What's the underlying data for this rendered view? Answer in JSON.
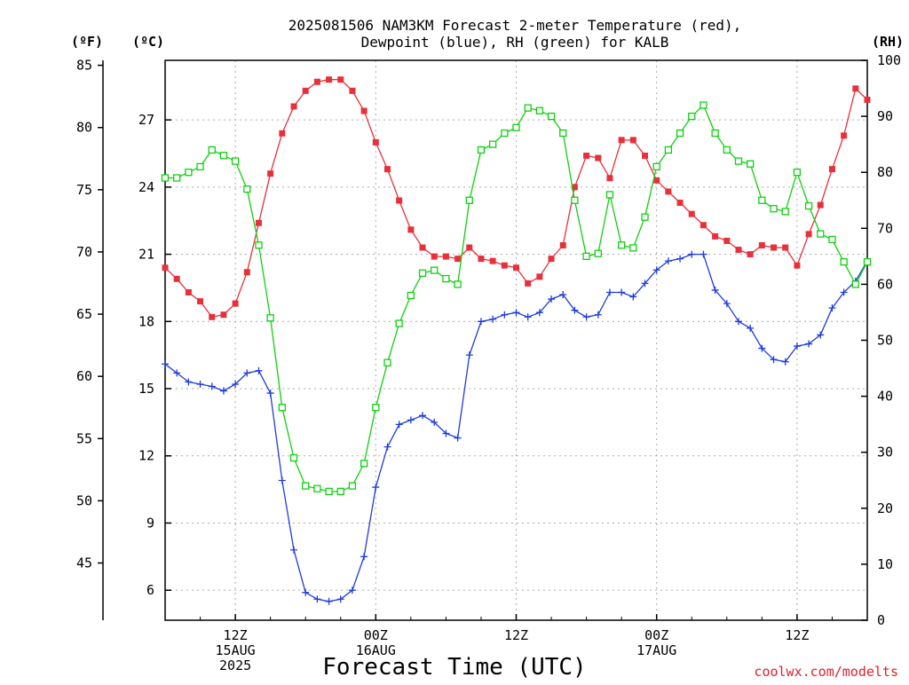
{
  "chart_data": {
    "type": "line",
    "title": [
      "2025081506 NAM3KM Forecast 2-meter Temperature (red),",
      "Dewpoint (blue), RH (green) for KALB"
    ],
    "xlabel": "Forecast Time (UTC)",
    "credit": "coolwx.com/modelts",
    "units": {
      "fahrenheit": "(ºF)",
      "celsius": "(ºC)",
      "rh": "(RH)"
    },
    "x_hour_range": [
      6,
      66
    ],
    "x_ticks": [
      {
        "hour": 12,
        "lines": [
          "12Z",
          "15AUG",
          "2025"
        ]
      },
      {
        "hour": 24,
        "lines": [
          "00Z",
          "16AUG"
        ]
      },
      {
        "hour": 36,
        "lines": [
          "12Z"
        ]
      },
      {
        "hour": 48,
        "lines": [
          "00Z",
          "17AUG"
        ]
      },
      {
        "hour": 60,
        "lines": [
          "12Z"
        ]
      }
    ],
    "celsius_axis": {
      "range": [
        4.66,
        29.66
      ],
      "ticks": [
        6,
        9,
        12,
        15,
        18,
        21,
        24,
        27
      ]
    },
    "fahrenheit_axis": {
      "range": [
        40.4,
        85.4
      ],
      "ticks": [
        45,
        50,
        55,
        60,
        65,
        70,
        75,
        80,
        85
      ]
    },
    "rh_axis": {
      "range": [
        0,
        100
      ],
      "ticks": [
        0,
        10,
        20,
        30,
        40,
        50,
        60,
        70,
        80,
        90,
        100
      ]
    },
    "grid": true,
    "series": [
      {
        "name": "Temperature",
        "axis": "celsius",
        "color": "#e8303a",
        "marker": "filled-square",
        "values": [
          20.4,
          19.9,
          19.3,
          18.9,
          18.2,
          18.3,
          18.8,
          20.2,
          22.4,
          24.6,
          26.4,
          27.6,
          28.3,
          28.7,
          28.8,
          28.8,
          28.3,
          27.4,
          26.0,
          24.8,
          23.4,
          22.1,
          21.3,
          20.9,
          20.9,
          20.8,
          21.3,
          20.8,
          20.7,
          20.5,
          20.4,
          19.7,
          20.0,
          20.8,
          21.4,
          24.0,
          25.4,
          25.3,
          24.4,
          26.1,
          26.1,
          25.4,
          24.3,
          23.8,
          23.3,
          22.8,
          22.3,
          21.8,
          21.6,
          21.2,
          21.0,
          21.4,
          21.3,
          21.3,
          20.5,
          21.9,
          23.2,
          24.8,
          26.3,
          28.4,
          27.9
        ]
      },
      {
        "name": "Dewpoint",
        "axis": "celsius",
        "color": "#1e3cdc",
        "marker": "plus",
        "values": [
          16.1,
          15.7,
          15.3,
          15.2,
          15.1,
          14.9,
          15.2,
          15.7,
          15.8,
          14.8,
          10.9,
          7.8,
          5.9,
          5.6,
          5.5,
          5.6,
          6.0,
          7.5,
          10.6,
          12.4,
          13.4,
          13.6,
          13.8,
          13.5,
          13.0,
          12.8,
          16.5,
          18.0,
          18.1,
          18.3,
          18.4,
          18.2,
          18.4,
          19.0,
          19.2,
          18.5,
          18.2,
          18.3,
          19.3,
          19.3,
          19.1,
          19.7,
          20.3,
          20.7,
          20.8,
          21.0,
          21.0,
          19.4,
          18.8,
          18.0,
          17.7,
          16.8,
          16.3,
          16.2,
          16.9,
          17.0,
          17.4,
          18.6,
          19.3,
          19.8,
          20.7
        ]
      },
      {
        "name": "RH",
        "axis": "rh",
        "color": "#10d010",
        "marker": "open-square",
        "values": [
          79,
          79,
          80,
          81,
          84,
          83,
          82,
          77,
          67,
          54,
          38,
          29,
          24,
          23.5,
          23,
          23,
          24,
          28,
          38,
          46,
          53,
          58,
          62,
          62.5,
          61,
          60,
          75,
          84,
          85,
          87,
          88,
          91.5,
          91,
          90,
          87,
          75,
          65,
          65.5,
          76,
          67,
          66.5,
          72,
          81,
          84,
          87,
          90,
          92,
          87,
          84,
          82,
          81.5,
          75,
          73.5,
          73,
          80,
          74,
          69,
          68,
          64,
          60,
          64
        ]
      }
    ]
  }
}
